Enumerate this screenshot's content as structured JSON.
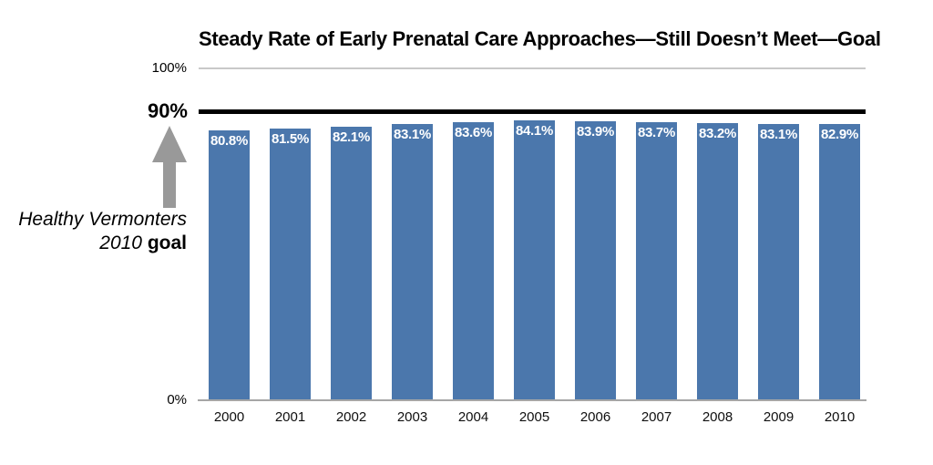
{
  "chart_data": {
    "type": "bar",
    "title": "Steady Rate of Early Prenatal Care Approaches—Still Doesn’t Meet—Goal",
    "categories": [
      "2000",
      "2001",
      "2002",
      "2003",
      "2004",
      "2005",
      "2006",
      "2007",
      "2008",
      "2009",
      "2010"
    ],
    "values": [
      80.8,
      81.5,
      82.1,
      83.1,
      83.6,
      84.1,
      83.9,
      83.7,
      83.2,
      83.1,
      82.9
    ],
    "bar_labels": [
      "80.8%",
      "81.5%",
      "82.1%",
      "83.1%",
      "83.6%",
      "84.1%",
      "83.9%",
      "83.7%",
      "83.2%",
      "83.1%",
      "82.9%"
    ],
    "xlabel": "",
    "ylabel": "",
    "ylim": [
      0,
      100
    ],
    "grid": "horizontal-100-only",
    "legend": "none",
    "y_axis": {
      "tick_top": "100%",
      "tick_goal": "90%",
      "tick_bottom": "0%"
    },
    "goal_line": {
      "value": 90,
      "label": "90%"
    },
    "annotation": {
      "line1": "Healthy Vermonters",
      "line2_italic": "2010",
      "line2_bold": "goal"
    },
    "colors": {
      "bar": "#4b77ac",
      "bar_label": "#ffffff",
      "goal_line": "#000000",
      "gridline": "#c9c9c9",
      "baseline": "#a6a6a6",
      "arrow": "#999999",
      "text": "#000000"
    }
  }
}
